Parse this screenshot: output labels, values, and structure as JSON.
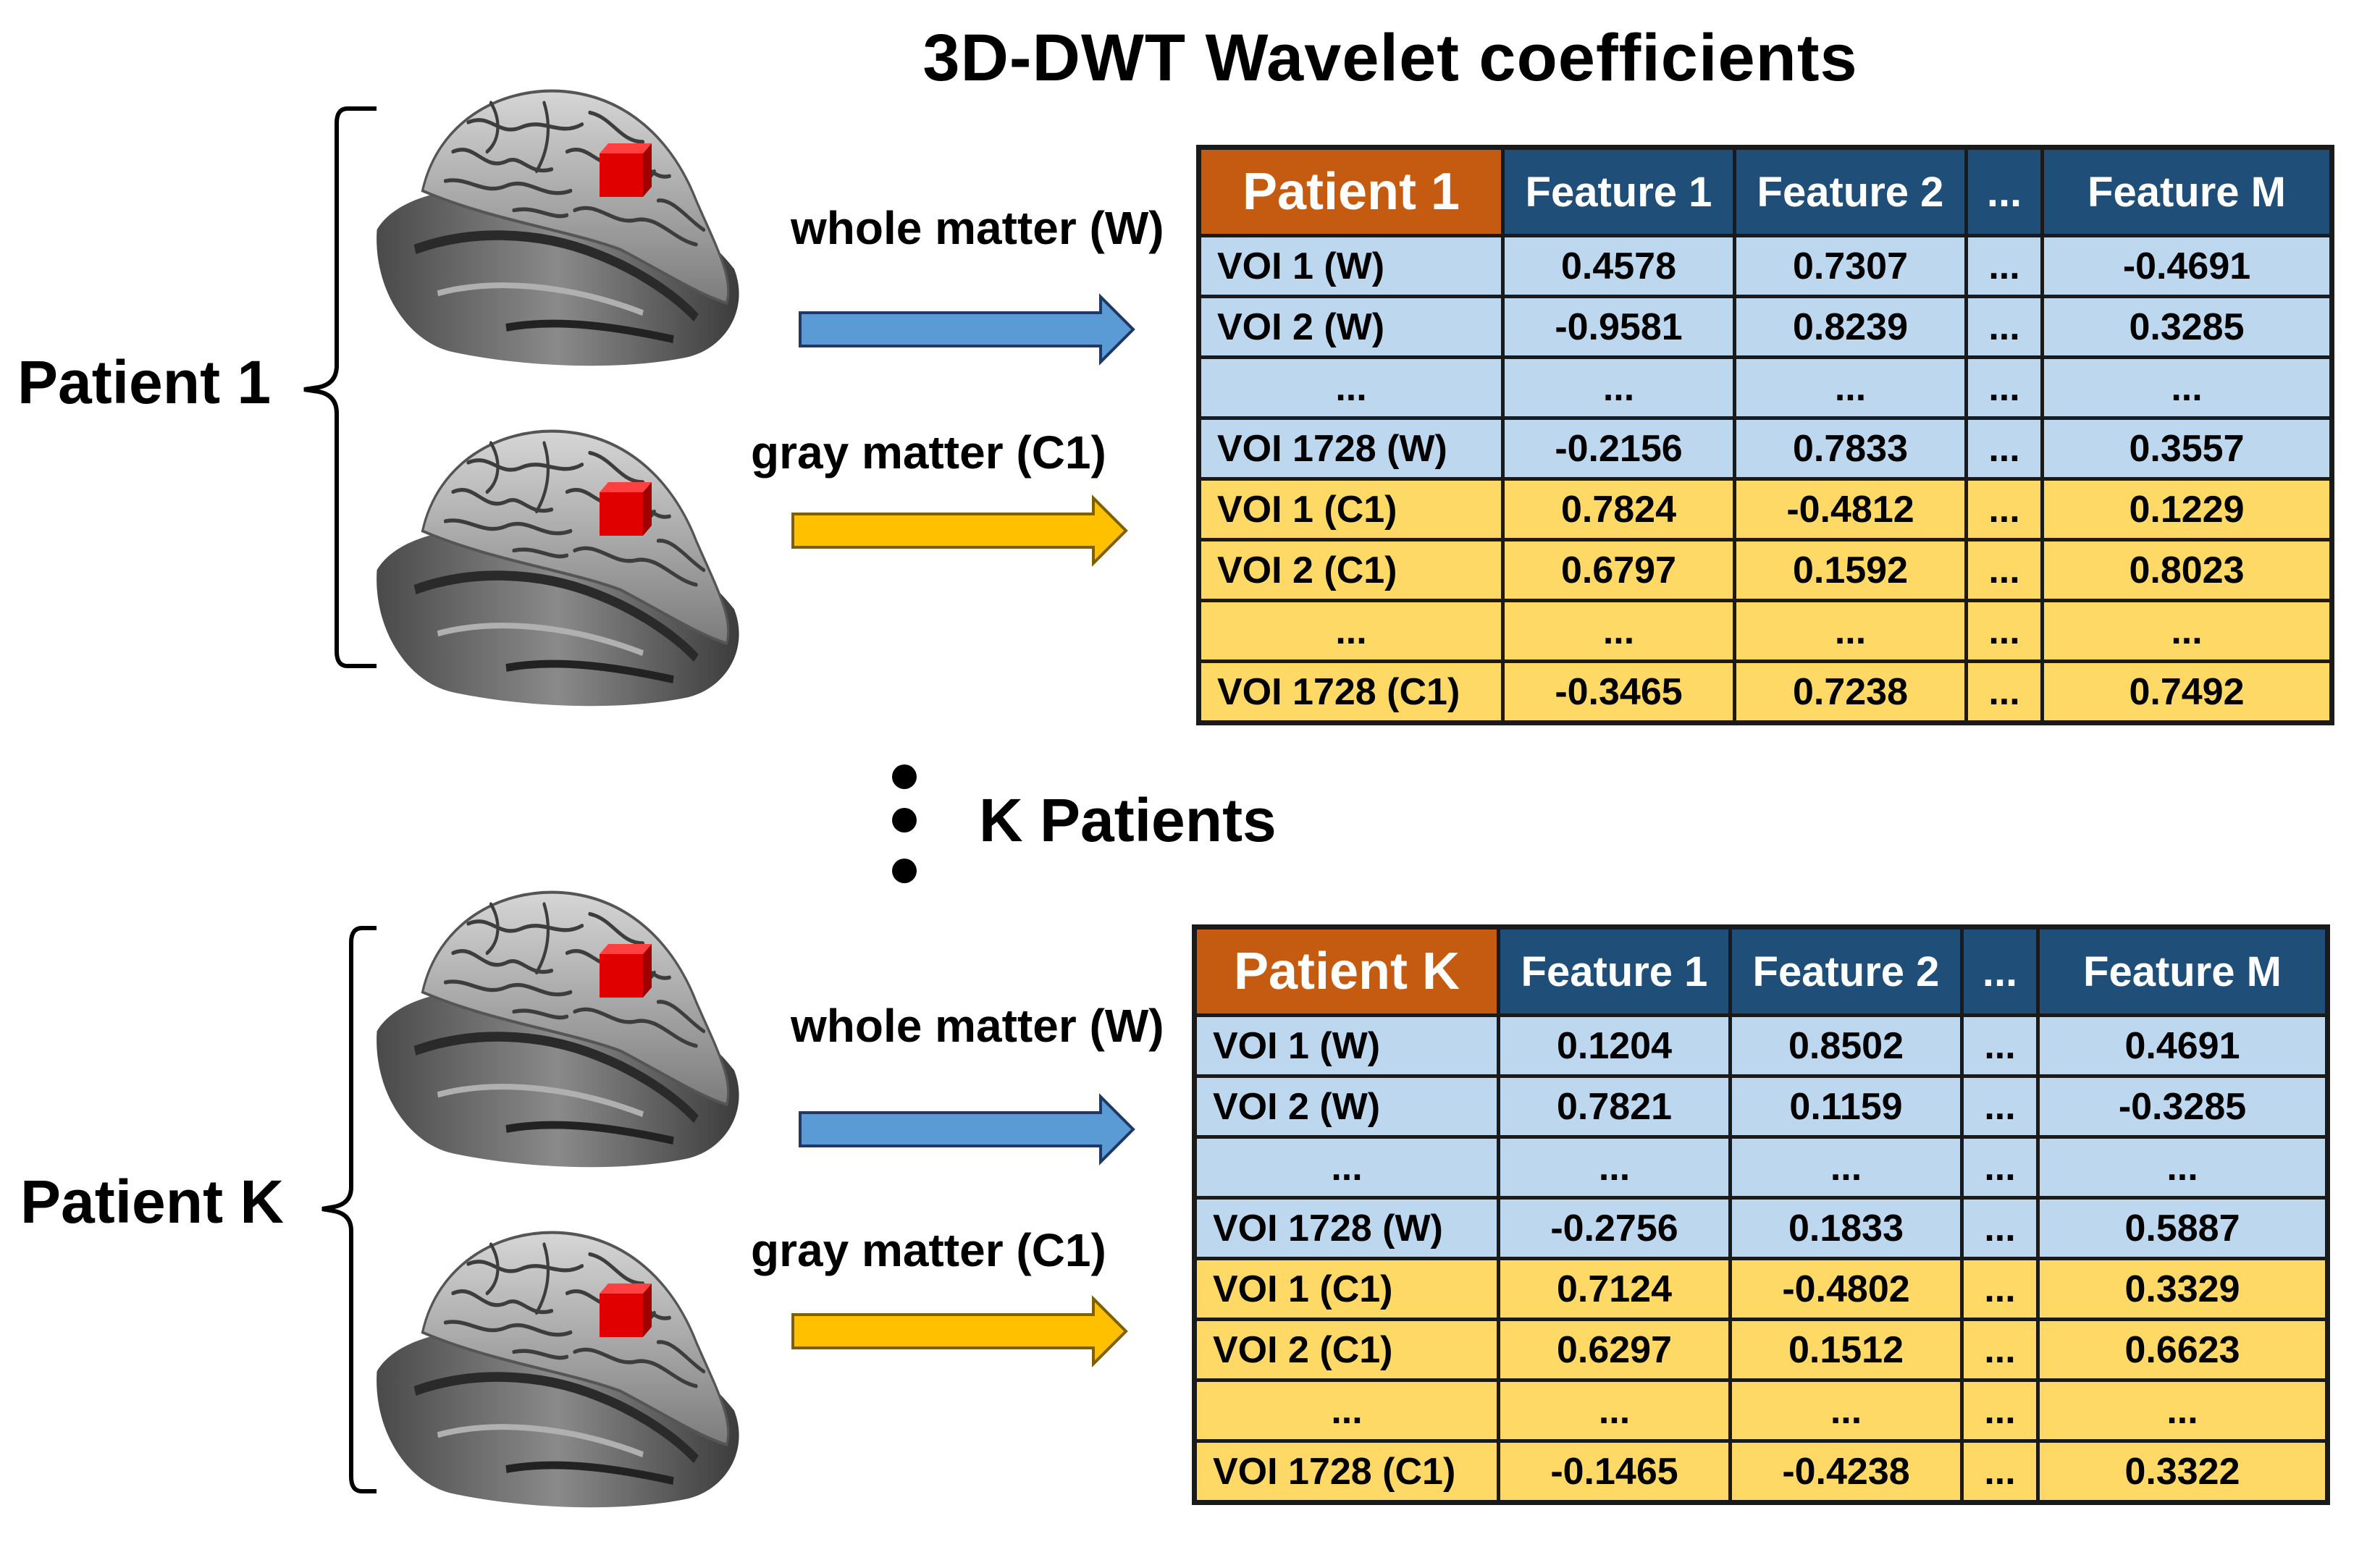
{
  "title": "3D-DWT Wavelet coefficients",
  "middle_label": "K Patients",
  "colors": {
    "header_blue": "#1f4e79",
    "header_orange": "#c55a11",
    "row_blue": "#bdd7ee",
    "row_yellow": "#ffd966",
    "arrow_blue": "#5b9bd5",
    "arrow_yellow": "#ffc000",
    "voi_cube": "#e00000"
  },
  "blocks": [
    {
      "patient_label": "Patient 1",
      "whole_label": "whole matter (W)",
      "gray_label": "gray matter (C1)",
      "table": {
        "corner": "Patient 1",
        "headers": [
          "Feature 1",
          "Feature 2",
          "...",
          "Feature M"
        ],
        "rows": [
          {
            "name": "VOI 1 (W)",
            "values": [
              "0.4578",
              "0.7307",
              "...",
              "-0.4691"
            ]
          },
          {
            "name": "VOI 2 (W)",
            "values": [
              "-0.9581",
              "0.8239",
              "...",
              "0.3285"
            ]
          },
          {
            "name": "...",
            "values": [
              "...",
              "...",
              "...",
              "..."
            ]
          },
          {
            "name": "VOI 1728 (W)",
            "values": [
              "-0.2156",
              "0.7833",
              "...",
              "0.3557"
            ]
          },
          {
            "name": "VOI 1 (C1)",
            "values": [
              "0.7824",
              "-0.4812",
              "...",
              "0.1229"
            ]
          },
          {
            "name": "VOI 2 (C1)",
            "values": [
              "0.6797",
              "0.1592",
              "...",
              "0.8023"
            ]
          },
          {
            "name": "...",
            "values": [
              "...",
              "...",
              "...",
              "..."
            ]
          },
          {
            "name": "VOI 1728 (C1)",
            "values": [
              "-0.3465",
              "0.7238",
              "...",
              "0.7492"
            ]
          }
        ]
      }
    },
    {
      "patient_label": "Patient K",
      "whole_label": "whole matter (W)",
      "gray_label": "gray matter (C1)",
      "table": {
        "corner": "Patient K",
        "headers": [
          "Feature 1",
          "Feature 2",
          "...",
          "Feature M"
        ],
        "rows": [
          {
            "name": "VOI 1 (W)",
            "values": [
              "0.1204",
              "0.8502",
              "...",
              "0.4691"
            ]
          },
          {
            "name": "VOI 2 (W)",
            "values": [
              "0.7821",
              "0.1159",
              "...",
              "-0.3285"
            ]
          },
          {
            "name": "...",
            "values": [
              "...",
              "...",
              "...",
              "..."
            ]
          },
          {
            "name": "VOI 1728 (W)",
            "values": [
              "-0.2756",
              "0.1833",
              "...",
              "0.5887"
            ]
          },
          {
            "name": "VOI 1 (C1)",
            "values": [
              "0.7124",
              "-0.4802",
              "...",
              "0.3329"
            ]
          },
          {
            "name": "VOI 2 (C1)",
            "values": [
              "0.6297",
              "0.1512",
              "...",
              "0.6623"
            ]
          },
          {
            "name": "...",
            "values": [
              "...",
              "...",
              "...",
              "..."
            ]
          },
          {
            "name": "VOI 1728 (C1)",
            "values": [
              "-0.1465",
              "-0.4238",
              "...",
              "0.3322"
            ]
          }
        ]
      }
    }
  ]
}
